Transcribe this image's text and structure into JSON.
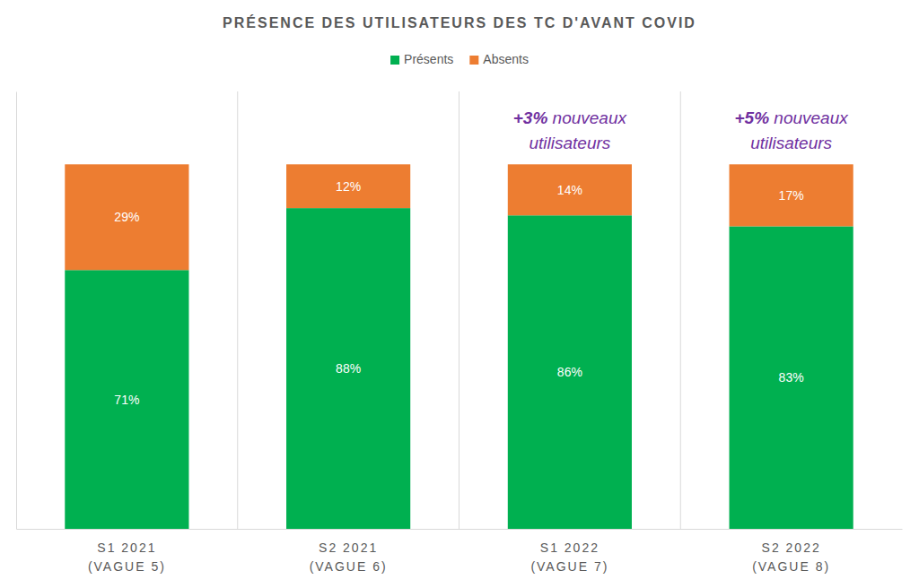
{
  "chart_data": {
    "type": "bar",
    "title": "PRÉSENCE DES UTILISATEURS DES TC D'AVANT COVID",
    "categories": [
      "S1 2021\n(VAGUE 5)",
      "S2 2021\n(VAGUE 6)",
      "S1 2022\n(VAGUE 7)",
      "S2 2022\n(VAGUE 8)"
    ],
    "series": [
      {
        "name": "Présents",
        "color": "#00b050",
        "values": [
          71,
          88,
          86,
          83
        ],
        "value_labels": [
          "71%",
          "88%",
          "86%",
          "83%"
        ]
      },
      {
        "name": "Absents",
        "color": "#ed7d31",
        "values": [
          29,
          12,
          14,
          17
        ],
        "value_labels": [
          "29%",
          "12%",
          "14%",
          "17%"
        ]
      }
    ],
    "stacked": true,
    "data_labels": true,
    "legend": "top",
    "grid": false,
    "tick_labels": "x",
    "ylim": [
      0,
      120
    ],
    "annotations": [
      {
        "text": [
          "+3% nouveaux",
          "utilisateurs"
        ],
        "category": "S1 2022\n(VAGUE 7)"
      },
      {
        "text": [
          "+5% nouveaux",
          "utilisateurs"
        ],
        "category": "S2 2022\n(VAGUE 8)"
      }
    ]
  }
}
